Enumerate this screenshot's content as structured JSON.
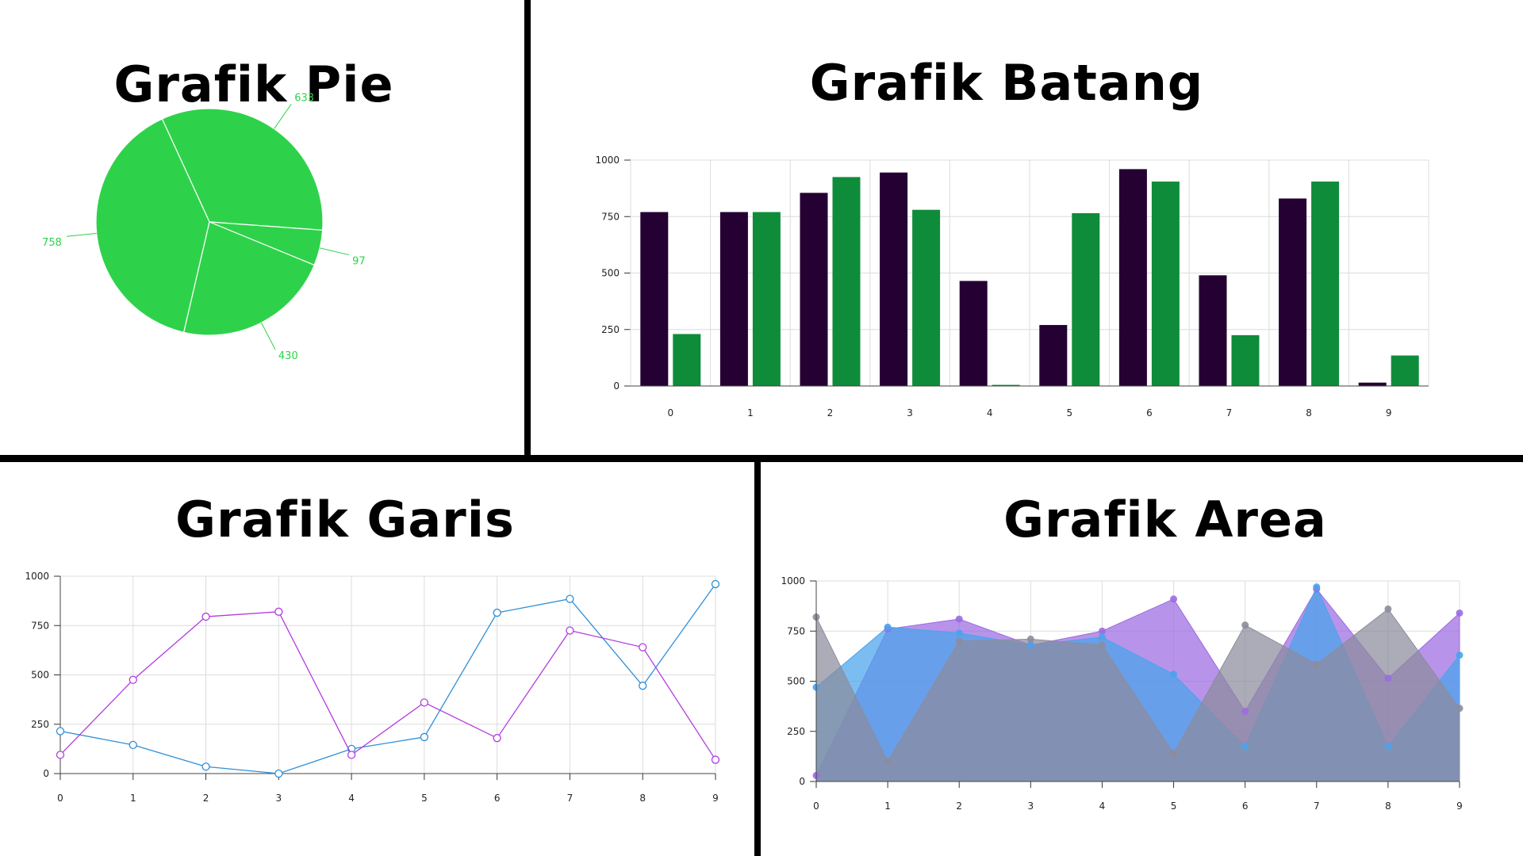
{
  "titles": {
    "pie": "Grafik Pie",
    "bar": "Grafik Batang",
    "line": "Grafik Garis",
    "area": "Grafik Area"
  },
  "chart_data": [
    {
      "type": "pie",
      "title": "Grafik Pie",
      "values": [
        633,
        97,
        430,
        758
      ],
      "labels": [
        "633",
        "97",
        "430",
        "758"
      ],
      "color": "#2ed24a"
    },
    {
      "type": "bar",
      "title": "Grafik Batang",
      "categories": [
        "0",
        "1",
        "2",
        "3",
        "4",
        "5",
        "6",
        "7",
        "8",
        "9"
      ],
      "series": [
        {
          "values": [
            770,
            770,
            855,
            945,
            465,
            270,
            960,
            490,
            830,
            15
          ],
          "color": "#250033"
        },
        {
          "values": [
            230,
            770,
            925,
            780,
            5,
            765,
            905,
            225,
            905,
            135
          ],
          "color": "#0f8c3a"
        }
      ],
      "ylim": [
        0,
        1000
      ],
      "yticks": [
        0,
        250,
        500,
        750,
        1000
      ],
      "grid": true
    },
    {
      "type": "line",
      "title": "Grafik Garis",
      "x": [
        "0",
        "1",
        "2",
        "3",
        "4",
        "5",
        "6",
        "7",
        "8",
        "9"
      ],
      "series": [
        {
          "values": [
            215,
            145,
            35,
            0,
            125,
            185,
            815,
            885,
            445,
            960
          ],
          "color": "#2e8fd6"
        },
        {
          "values": [
            95,
            475,
            795,
            820,
            95,
            360,
            180,
            725,
            640,
            70
          ],
          "color": "#b23de0"
        }
      ],
      "ylim": [
        0,
        1000
      ],
      "yticks": [
        0,
        250,
        500,
        750,
        1000
      ],
      "grid": true
    },
    {
      "type": "area",
      "title": "Grafik Area",
      "x": [
        "0",
        "1",
        "2",
        "3",
        "4",
        "5",
        "6",
        "7",
        "8",
        "9"
      ],
      "series": [
        {
          "values": [
            30,
            760,
            810,
            680,
            750,
            910,
            350,
            960,
            515,
            840
          ],
          "color": "#9b6be0"
        },
        {
          "values": [
            470,
            770,
            740,
            680,
            720,
            535,
            175,
            970,
            175,
            630
          ],
          "color": "#4aa3ec"
        },
        {
          "values": [
            820,
            100,
            700,
            710,
            680,
            140,
            780,
            585,
            860,
            365
          ],
          "color": "#8c8c9c"
        }
      ],
      "ylim": [
        0,
        1000
      ],
      "yticks": [
        0,
        250,
        500,
        750,
        1000
      ],
      "grid": true
    }
  ]
}
